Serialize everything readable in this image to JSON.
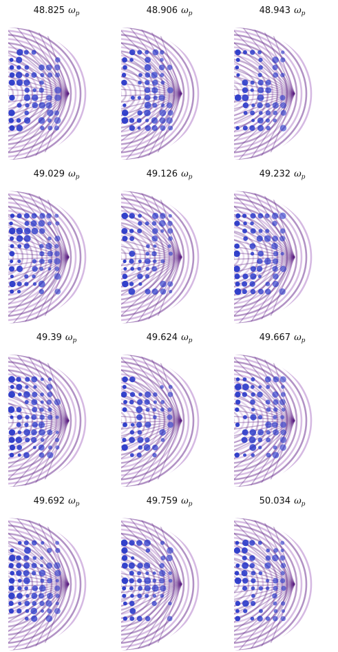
{
  "panels": [
    {
      "frequency": "48.825",
      "symbol": "ω",
      "subscript": "p"
    },
    {
      "frequency": "48.906",
      "symbol": "ω",
      "subscript": "p"
    },
    {
      "frequency": "48.943",
      "symbol": "ω",
      "subscript": "p"
    },
    {
      "frequency": "49.029",
      "symbol": "ω",
      "subscript": "p"
    },
    {
      "frequency": "49.126",
      "symbol": "ω",
      "subscript": "p"
    },
    {
      "frequency": "49.232",
      "symbol": "ω",
      "subscript": "p"
    },
    {
      "frequency": "49.39",
      "symbol": "ω",
      "subscript": "p"
    },
    {
      "frequency": "49.624",
      "symbol": "ω",
      "subscript": "p"
    },
    {
      "frequency": "49.667",
      "symbol": "ω",
      "subscript": "p"
    },
    {
      "frequency": "49.692",
      "symbol": "ω",
      "subscript": "p"
    },
    {
      "frequency": "49.759",
      "symbol": "ω",
      "subscript": "p"
    },
    {
      "frequency": "50.034",
      "symbol": "ω",
      "subscript": "p"
    }
  ]
}
